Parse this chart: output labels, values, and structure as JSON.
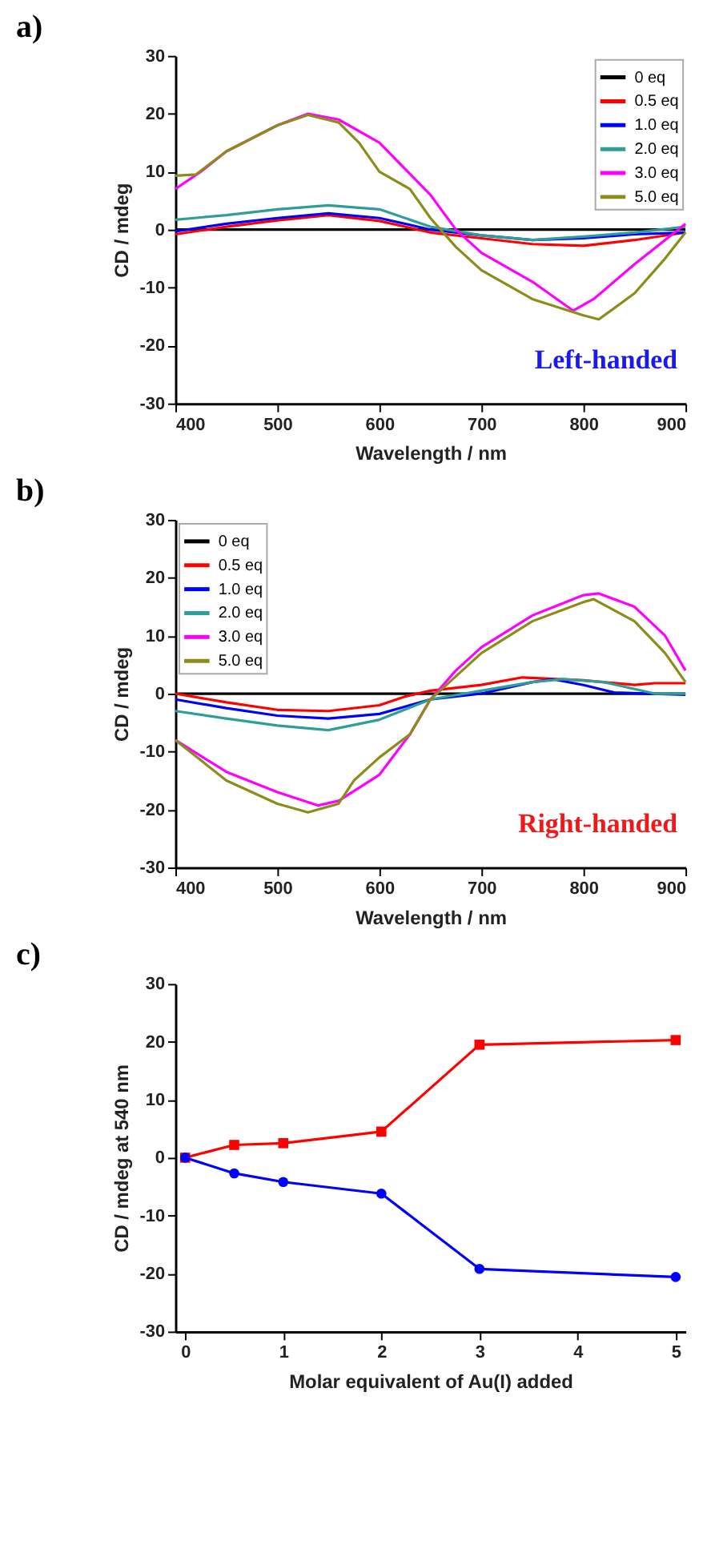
{
  "chart_data": [
    {
      "type": "line",
      "title": "a)",
      "xlabel": "Wavelength / nm",
      "ylabel": "CD / mdeg",
      "xlim": [
        400,
        900
      ],
      "xticks": [
        400,
        500,
        600,
        700,
        800,
        900
      ],
      "ylim": [
        -30,
        30
      ],
      "yticks": [
        -30,
        -20,
        -10,
        0,
        10,
        20,
        30
      ],
      "grid": false,
      "legend": "top right",
      "annotations": [
        "Left-handed"
      ],
      "series": [
        {
          "name": "0 eq",
          "color": "#000000",
          "x": [
            400,
            500,
            600,
            700,
            800,
            900
          ],
          "values": [
            0,
            0,
            0,
            0,
            0,
            0
          ]
        },
        {
          "name": "0.5 eq",
          "color": "#ff0000",
          "x": [
            400,
            450,
            500,
            550,
            600,
            625,
            650,
            700,
            750,
            800,
            850,
            900
          ],
          "values": [
            -0.8,
            0.5,
            1.6,
            2.5,
            1.5,
            0.5,
            -0.5,
            -1.5,
            -2.5,
            -2.8,
            -1.8,
            -0.5
          ]
        },
        {
          "name": "1.0 eq",
          "color": "#0000ff",
          "x": [
            400,
            450,
            500,
            550,
            600,
            650,
            700,
            750,
            800,
            850,
            900
          ],
          "values": [
            -0.3,
            1,
            2,
            2.8,
            2,
            0,
            -1,
            -1.8,
            -1.5,
            -0.8,
            -0.5
          ]
        },
        {
          "name": "2.0 eq",
          "color": "#2e9e96",
          "x": [
            400,
            450,
            500,
            550,
            600,
            650,
            700,
            750,
            800,
            850,
            900
          ],
          "values": [
            1.7,
            2.5,
            3.5,
            4.2,
            3.5,
            0.5,
            -1,
            -1.8,
            -1.2,
            -0.5,
            0.5
          ]
        },
        {
          "name": "3.0 eq",
          "color": "#ff00ff",
          "x": [
            400,
            425,
            450,
            500,
            530,
            560,
            600,
            650,
            675,
            700,
            750,
            790,
            810,
            850,
            875,
            900
          ],
          "values": [
            7,
            10,
            13.5,
            18,
            20,
            19,
            15,
            6,
            0,
            -4,
            -9,
            -14,
            -12,
            -6,
            -2.5,
            1
          ]
        },
        {
          "name": "5.0 eq",
          "color": "#8c8c1a",
          "x": [
            400,
            420,
            450,
            500,
            530,
            560,
            580,
            600,
            630,
            650,
            675,
            700,
            750,
            800,
            815,
            850,
            880,
            900
          ],
          "values": [
            9.3,
            9.5,
            13.5,
            18,
            19.8,
            18.5,
            15,
            10,
            7,
            2,
            -3,
            -7,
            -12,
            -14.8,
            -15.5,
            -11,
            -5,
            -0.5
          ]
        }
      ]
    },
    {
      "type": "line",
      "title": "b)",
      "xlabel": "Wavelength / nm",
      "ylabel": "CD / mdeg",
      "xlim": [
        400,
        900
      ],
      "xticks": [
        400,
        500,
        600,
        700,
        800,
        900
      ],
      "ylim": [
        -30,
        30
      ],
      "yticks": [
        -30,
        -20,
        -10,
        0,
        10,
        20,
        30
      ],
      "grid": false,
      "legend": "top left",
      "annotations": [
        "Right-handed"
      ],
      "series": [
        {
          "name": "0 eq",
          "color": "#000000",
          "x": [
            400,
            500,
            600,
            700,
            800,
            900
          ],
          "values": [
            0,
            0,
            0,
            0,
            0,
            0
          ]
        },
        {
          "name": "0.5 eq",
          "color": "#ff0000",
          "x": [
            400,
            450,
            500,
            550,
            600,
            625,
            650,
            700,
            740,
            800,
            850,
            870,
            900
          ],
          "values": [
            0,
            -1.5,
            -2.8,
            -3,
            -2,
            -0.5,
            0.5,
            1.5,
            2.8,
            2.3,
            1.5,
            1.8,
            1.8
          ]
        },
        {
          "name": "1.0 eq",
          "color": "#0000ff",
          "x": [
            400,
            450,
            500,
            550,
            600,
            650,
            700,
            750,
            770,
            800,
            830,
            900
          ],
          "values": [
            -1,
            -2.5,
            -3.8,
            -4.3,
            -3.5,
            -1,
            0,
            2,
            2.5,
            1.5,
            0.2,
            -0.2
          ]
        },
        {
          "name": "2.0 eq",
          "color": "#2e9e96",
          "x": [
            400,
            450,
            500,
            550,
            600,
            650,
            700,
            750,
            780,
            820,
            870,
            900
          ],
          "values": [
            -3,
            -4.3,
            -5.5,
            -6.3,
            -4.5,
            -1,
            0.5,
            2,
            2.5,
            2,
            0,
            0
          ]
        },
        {
          "name": "3.0 eq",
          "color": "#ff00ff",
          "x": [
            400,
            450,
            500,
            540,
            560,
            600,
            630,
            650,
            675,
            700,
            750,
            800,
            815,
            850,
            880,
            900
          ],
          "values": [
            -8,
            -13.5,
            -17,
            -19.3,
            -18.5,
            -14,
            -7,
            -1,
            4,
            8,
            13.5,
            17,
            17.3,
            15,
            10,
            4
          ]
        },
        {
          "name": "5.0 eq",
          "color": "#8c8c1a",
          "x": [
            400,
            450,
            500,
            530,
            560,
            575,
            600,
            630,
            650,
            675,
            700,
            750,
            800,
            810,
            850,
            880,
            900
          ],
          "values": [
            -8,
            -15,
            -19,
            -20.5,
            -19,
            -15,
            -11,
            -7,
            -1,
            3,
            7,
            12.5,
            15.8,
            16.3,
            12.5,
            7,
            2
          ]
        }
      ]
    },
    {
      "type": "line",
      "title": "c)",
      "xlabel": "Molar equivalent of Au(I) added",
      "ylabel": "CD / mdeg at 540 nm",
      "xlim": [
        -0.1,
        5.1
      ],
      "xticks": [
        0,
        1,
        2,
        3,
        4,
        5
      ],
      "ylim": [
        -30,
        30
      ],
      "yticks": [
        -30,
        -20,
        -10,
        0,
        10,
        20,
        30
      ],
      "grid": false,
      "series": [
        {
          "color": "#ff0000",
          "marker": "square",
          "x": [
            0,
            0.5,
            1,
            2,
            3,
            5
          ],
          "values": [
            0,
            2.2,
            2.5,
            4.5,
            19.5,
            20.3
          ]
        },
        {
          "color": "#0000ff",
          "marker": "circle",
          "x": [
            0,
            0.5,
            1,
            2,
            3,
            5
          ],
          "values": [
            0,
            -2.7,
            -4.2,
            -6.2,
            -19.2,
            -20.6
          ]
        }
      ]
    }
  ]
}
